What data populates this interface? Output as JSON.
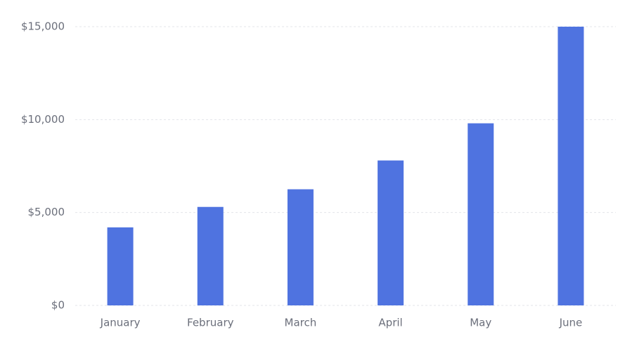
{
  "chart_data": {
    "type": "bar",
    "categories": [
      "January",
      "February",
      "March",
      "April",
      "May",
      "June"
    ],
    "series": [
      {
        "values": [
          4200,
          5300,
          6250,
          7800,
          9800,
          15000
        ]
      }
    ],
    "title": "",
    "xlabel": "",
    "ylabel": "",
    "ylim": [
      0,
      15000
    ],
    "y_ticks": [
      0,
      5000,
      10000,
      15000
    ],
    "y_tick_labels": [
      "$0",
      "$5,000",
      "$10,000",
      "$15,000"
    ],
    "grid": true,
    "legend": "none",
    "colors": {
      "bar": "#4f73e0",
      "grid": "#e3e5ea",
      "text": "#6b6f7b"
    }
  }
}
